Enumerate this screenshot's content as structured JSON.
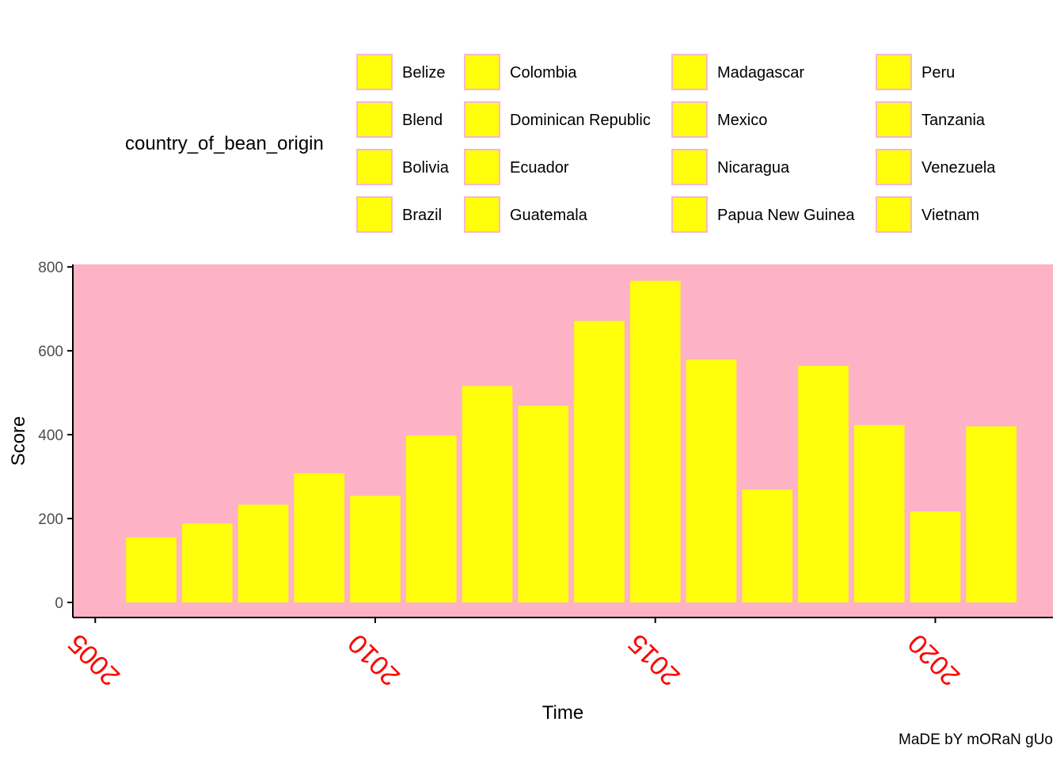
{
  "chart_data": {
    "type": "bar",
    "x": [
      2006,
      2007,
      2008,
      2009,
      2010,
      2011,
      2012,
      2013,
      2014,
      2015,
      2016,
      2017,
      2018,
      2019,
      2020,
      2021
    ],
    "values": [
      155,
      188,
      233,
      308,
      254,
      398,
      516,
      469,
      671,
      767,
      579,
      269,
      564,
      423,
      217,
      420
    ],
    "xlabel": "Time",
    "ylabel": "Score",
    "xlim": [
      2004.6,
      2022.1
    ],
    "ylim": [
      -36,
      806
    ],
    "xticks": [
      2005,
      2010,
      2015,
      2020
    ],
    "yticks": [
      0,
      200,
      400,
      600,
      800
    ],
    "grid": false,
    "legend_placement": "top",
    "legend_title": "country_of_bean_origin",
    "legend": [
      "Belize",
      "Blend",
      "Bolivia",
      "Brazil",
      "Colombia",
      "Dominican Republic",
      "Ecuador",
      "Guatemala",
      "Madagascar",
      "Mexico",
      "Nicaragua",
      "Papua New Guinea",
      "Peru",
      "Tanzania",
      "Venezuela",
      "Vietnam"
    ],
    "caption": "MaDE bY mORaN gUo",
    "colors": {
      "bar_fill": "#ffff0b",
      "panel_background": "#fdb2c6",
      "legend_key_border": "#f8b6d0",
      "x_tick_label": "#ff0000",
      "axis_text": "#4d4d4d",
      "axis_line": "#000000"
    }
  }
}
